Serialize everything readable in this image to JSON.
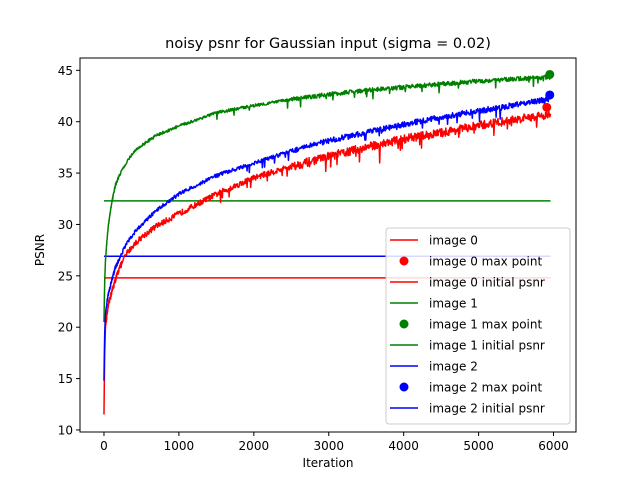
{
  "chart_data": {
    "type": "line",
    "title": "noisy psnr for Gaussian input (sigma = 0.02)",
    "xlabel": "Iteration",
    "ylabel": "PSNR",
    "xlim": [
      -320,
      6300
    ],
    "ylim": [
      9.8,
      46.2
    ],
    "xticks": [
      0,
      1000,
      2000,
      3000,
      4000,
      5000,
      6000
    ],
    "yticks": [
      10,
      15,
      20,
      25,
      30,
      35,
      40,
      45
    ],
    "grid": false,
    "legend_position": "lower right",
    "legend": [
      {
        "label": "image 0",
        "kind": "line",
        "color": "#ff0000"
      },
      {
        "label": "image 0 max point",
        "kind": "point",
        "color": "#ff0000"
      },
      {
        "label": "image 0 initial psnr",
        "kind": "line",
        "color": "#ff0000"
      },
      {
        "label": "image 1",
        "kind": "line",
        "color": "#008000"
      },
      {
        "label": "image 1 max point",
        "kind": "point",
        "color": "#008000"
      },
      {
        "label": "image 1 initial psnr",
        "kind": "line",
        "color": "#008000"
      },
      {
        "label": "image 2",
        "kind": "line",
        "color": "#0000ff"
      },
      {
        "label": "image 2 max point",
        "kind": "point",
        "color": "#0000ff"
      },
      {
        "label": "image 2 initial psnr",
        "kind": "line",
        "color": "#0000ff"
      }
    ],
    "series": [
      {
        "name": "image 0",
        "color": "#ff0000",
        "x": [
          0,
          5,
          10,
          20,
          40,
          60,
          100,
          150,
          200,
          300,
          400,
          500,
          700,
          1000,
          1500,
          2000,
          2500,
          3000,
          3500,
          4000,
          4500,
          5000,
          5500,
          5960
        ],
        "y": [
          11.5,
          15.0,
          17.5,
          20.0,
          21.3,
          22.2,
          23.4,
          24.6,
          25.7,
          27.2,
          28.1,
          28.8,
          29.9,
          31.1,
          33.0,
          34.6,
          35.7,
          36.7,
          37.6,
          38.4,
          39.0,
          39.7,
          40.3,
          40.8
        ],
        "noise": 0.7,
        "max_point": {
          "x": 5910,
          "y": 41.4
        },
        "initial_psnr": 24.8
      },
      {
        "name": "image 1",
        "color": "#008000",
        "x": [
          0,
          5,
          10,
          20,
          40,
          60,
          100,
          150,
          200,
          300,
          400,
          500,
          700,
          1000,
          1500,
          2000,
          2500,
          3000,
          3500,
          4000,
          4500,
          5000,
          5500,
          5960
        ],
        "y": [
          20.5,
          22.8,
          24.5,
          26.5,
          28.5,
          30.0,
          32.0,
          33.8,
          34.7,
          36.1,
          37.1,
          37.7,
          38.7,
          39.6,
          40.9,
          41.6,
          42.2,
          42.7,
          43.1,
          43.4,
          43.7,
          44.0,
          44.2,
          44.4
        ],
        "noise": 0.35,
        "max_point": {
          "x": 5950,
          "y": 44.6
        },
        "initial_psnr": 32.3
      },
      {
        "name": "image 2",
        "color": "#0000ff",
        "x": [
          0,
          5,
          10,
          20,
          40,
          60,
          100,
          150,
          200,
          300,
          400,
          500,
          700,
          1000,
          1500,
          2000,
          2500,
          3000,
          3500,
          4000,
          4500,
          5000,
          5500,
          5960
        ],
        "y": [
          14.8,
          17.5,
          19.5,
          21.3,
          22.5,
          23.3,
          24.5,
          25.8,
          26.6,
          28.2,
          29.2,
          30.0,
          31.4,
          33.0,
          34.8,
          36.0,
          37.2,
          38.2,
          39.0,
          39.8,
          40.5,
          41.1,
          41.7,
          42.3
        ],
        "noise": 0.45,
        "max_point": {
          "x": 5950,
          "y": 42.6
        },
        "initial_psnr": 26.9
      }
    ]
  }
}
